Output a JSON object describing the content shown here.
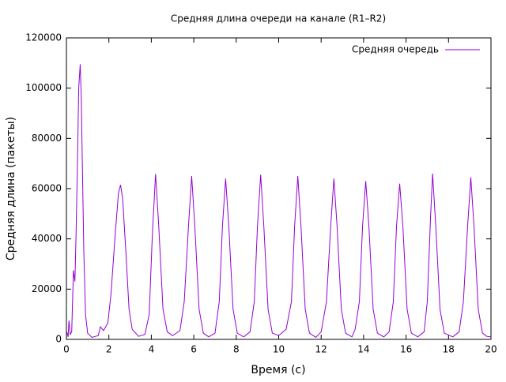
{
  "chart_data": {
    "type": "line",
    "title": "Средняя длина очереди на канале (R1–R2)",
    "x_label": "Время (с)",
    "y_label": "Средняя длина (пакеты)",
    "x": [
      0.02,
      0.08,
      0.12,
      0.18,
      0.25,
      0.33,
      0.4,
      0.45,
      0.52,
      0.58,
      0.65,
      0.7,
      0.75,
      0.82,
      0.9,
      1.0,
      1.2,
      1.5,
      1.6,
      1.75,
      1.95,
      2.1,
      2.3,
      2.45,
      2.55,
      2.65,
      2.8,
      2.95,
      3.1,
      3.4,
      3.7,
      3.9,
      4.05,
      4.2,
      4.35,
      4.55,
      4.75,
      5.0,
      5.35,
      5.55,
      5.75,
      5.9,
      6.05,
      6.25,
      6.45,
      6.7,
      7.0,
      7.2,
      7.35,
      7.5,
      7.65,
      7.85,
      8.05,
      8.35,
      8.65,
      8.85,
      9.0,
      9.15,
      9.3,
      9.5,
      9.7,
      10.0,
      10.35,
      10.6,
      10.75,
      10.9,
      11.05,
      11.25,
      11.45,
      11.75,
      12.0,
      12.25,
      12.45,
      12.6,
      12.75,
      12.95,
      13.15,
      13.45,
      13.6,
      13.8,
      13.95,
      14.1,
      14.25,
      14.45,
      14.65,
      14.95,
      15.2,
      15.4,
      15.55,
      15.7,
      15.85,
      16.05,
      16.25,
      16.55,
      16.85,
      17.0,
      17.15,
      17.25,
      17.4,
      17.6,
      17.8,
      18.2,
      18.5,
      18.7,
      18.9,
      19.05,
      19.2,
      19.4,
      19.6,
      19.8,
      20.0
    ],
    "series": [
      {
        "name": "Средняя очередь",
        "color": "#9400d3",
        "values": [
          3000,
          1000,
          7500,
          2000,
          3000,
          27500,
          23000,
          40000,
          70000,
          100000,
          109500,
          96000,
          70000,
          35000,
          10000,
          2500,
          800,
          1500,
          5000,
          3500,
          6500,
          18000,
          42000,
          58000,
          61500,
          56000,
          35000,
          12000,
          4000,
          1200,
          2000,
          10000,
          42000,
          65800,
          45000,
          12000,
          3000,
          1500,
          3500,
          15000,
          45000,
          65000,
          45000,
          12000,
          2500,
          1000,
          2500,
          15000,
          45000,
          64000,
          45000,
          12000,
          2500,
          1000,
          3000,
          15000,
          45000,
          65500,
          45000,
          12000,
          2500,
          1500,
          4000,
          15000,
          45000,
          65000,
          45000,
          12000,
          2500,
          800,
          3000,
          15000,
          45000,
          64000,
          45000,
          12000,
          2500,
          1000,
          4000,
          15000,
          45000,
          63000,
          45000,
          12000,
          2500,
          1000,
          3000,
          15000,
          45000,
          62000,
          45000,
          12000,
          2500,
          1000,
          3000,
          15000,
          48000,
          66000,
          45000,
          12000,
          2500,
          1000,
          3000,
          15000,
          45000,
          64500,
          45000,
          12000,
          2500,
          1200,
          1000
        ]
      }
    ],
    "xlim": [
      0,
      20
    ],
    "xticks": [
      0,
      2,
      4,
      6,
      8,
      10,
      12,
      14,
      16,
      18,
      20
    ],
    "ylim": [
      0,
      120000
    ],
    "yticks": [
      0,
      20000,
      40000,
      60000,
      80000,
      100000,
      120000
    ],
    "legend": "top-right"
  }
}
